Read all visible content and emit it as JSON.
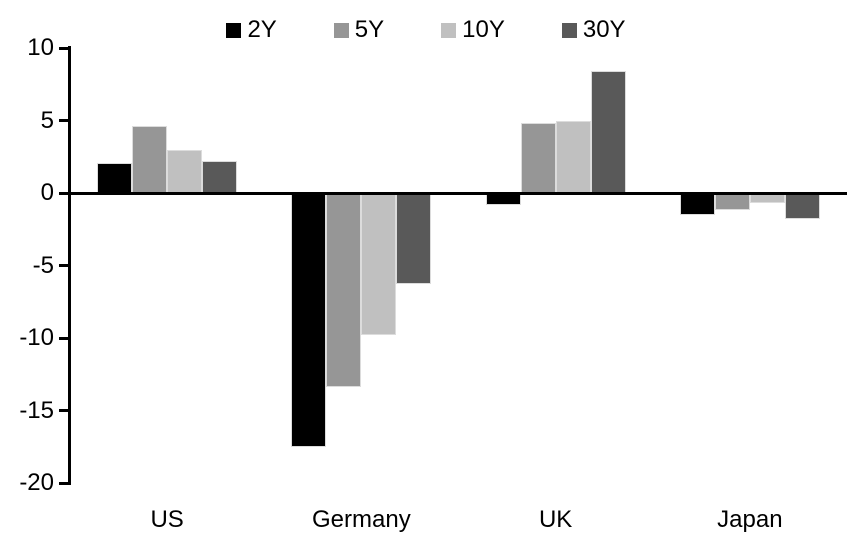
{
  "chart_data": {
    "type": "bar",
    "categories": [
      "US",
      "Germany",
      "UK",
      "Japan"
    ],
    "series": [
      {
        "name": "2Y",
        "color": "#000000",
        "values": [
          2.1,
          -17.5,
          -0.8,
          -1.5
        ]
      },
      {
        "name": "5Y",
        "color": "#969696",
        "values": [
          4.6,
          -13.4,
          4.8,
          -1.2
        ]
      },
      {
        "name": "10Y",
        "color": "#c0c0c0",
        "values": [
          3.0,
          -9.8,
          5.0,
          -0.7
        ]
      },
      {
        "name": "30Y",
        "color": "#595959",
        "values": [
          2.2,
          -6.3,
          8.4,
          -1.8
        ]
      }
    ],
    "ylim": [
      -20,
      10
    ],
    "yticks": [
      10,
      5,
      0,
      -5,
      -10,
      -15,
      -20
    ],
    "legend_position": "top",
    "grid": false,
    "axis_color": "#000000",
    "background_color": "#ffffff"
  }
}
